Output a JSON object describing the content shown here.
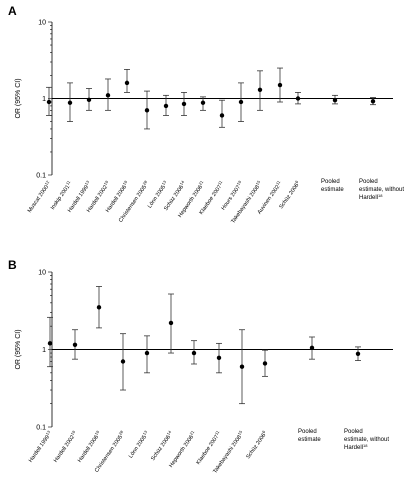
{
  "chart_data": [
    {
      "panel": "A",
      "type": "scatter",
      "ylabel": "OR (95% CI)",
      "yscale": "log",
      "ylim": [
        0.1,
        10
      ],
      "yticks": [
        "0.1",
        "1",
        "10"
      ],
      "categories": [
        {
          "label": "Muscat 2000",
          "sup": "12"
        },
        {
          "label": "Inskip 2001",
          "sup": "11"
        },
        {
          "label": "Hardell 1999",
          "sup": "13"
        },
        {
          "label": "Hardell 2002",
          "sup": "19"
        },
        {
          "label": "Hardell 2006",
          "sup": "19"
        },
        {
          "label": "Christensen 2005",
          "sup": "28"
        },
        {
          "label": "Lönn 2005",
          "sup": "13"
        },
        {
          "label": "Schüz 2006",
          "sup": "14"
        },
        {
          "label": "Hepworth 2006",
          "sup": "21"
        },
        {
          "label": "Klaeboe 2007",
          "sup": "11"
        },
        {
          "label": "Hours 2007",
          "sup": "19"
        },
        {
          "label": "Takebayashi 2008",
          "sup": "15"
        },
        {
          "label": "Auvinen 2002",
          "sup": "11"
        },
        {
          "label": "Schüz 2006",
          "sup": "6"
        },
        {
          "label": "Pooled estimate",
          "sup": ""
        },
        {
          "label": "Pooled estimate, without Hardell",
          "sup": "18"
        }
      ],
      "or": [
        0.9,
        0.88,
        0.96,
        1.1,
        1.6,
        0.7,
        0.8,
        0.85,
        0.88,
        0.6,
        0.9,
        1.3,
        1.5,
        1.0,
        0.95,
        0.92
      ],
      "ci_low": [
        0.6,
        0.5,
        0.7,
        0.7,
        1.2,
        0.4,
        0.6,
        0.6,
        0.7,
        0.42,
        0.5,
        0.7,
        0.9,
        0.85,
        0.85,
        0.83
      ],
      "ci_high": [
        1.4,
        1.6,
        1.35,
        1.8,
        2.4,
        1.25,
        1.1,
        1.2,
        1.05,
        0.95,
        1.6,
        2.3,
        2.5,
        1.2,
        1.1,
        1.03
      ]
    },
    {
      "panel": "B",
      "type": "scatter",
      "ylabel": "OR (95% CI)",
      "yscale": "log",
      "ylim": [
        0.1,
        10
      ],
      "yticks": [
        "0.1",
        "1",
        "10"
      ],
      "categories": [
        {
          "label": "Hardell 1999",
          "sup": "13"
        },
        {
          "label": "Hardell 2002",
          "sup": "19"
        },
        {
          "label": "Hardell 2006",
          "sup": "19"
        },
        {
          "label": "Christensen 2005",
          "sup": "28"
        },
        {
          "label": "Lönn 2005",
          "sup": "13"
        },
        {
          "label": "Schüz 2006",
          "sup": "14"
        },
        {
          "label": "Hepworth 2006",
          "sup": "21"
        },
        {
          "label": "Klaeboe 2007",
          "sup": "11"
        },
        {
          "label": "Takebayashi 2008",
          "sup": "15"
        },
        {
          "label": "Schüz 2006",
          "sup": "6"
        },
        {
          "label": "Pooled estimate",
          "sup": ""
        },
        {
          "label": "Pooled estimate, without Hardell",
          "sup": "18"
        }
      ],
      "or": [
        1.2,
        1.15,
        3.5,
        0.7,
        0.9,
        2.2,
        0.9,
        0.78,
        0.6,
        0.66,
        1.05,
        0.88
      ],
      "ci_low": [
        0.6,
        0.75,
        1.9,
        0.3,
        0.5,
        0.9,
        0.65,
        0.5,
        0.2,
        0.45,
        0.75,
        0.72
      ],
      "ci_high": [
        2.6,
        1.8,
        6.5,
        1.6,
        1.5,
        5.2,
        1.3,
        1.2,
        1.8,
        0.98,
        1.45,
        1.08
      ]
    }
  ]
}
